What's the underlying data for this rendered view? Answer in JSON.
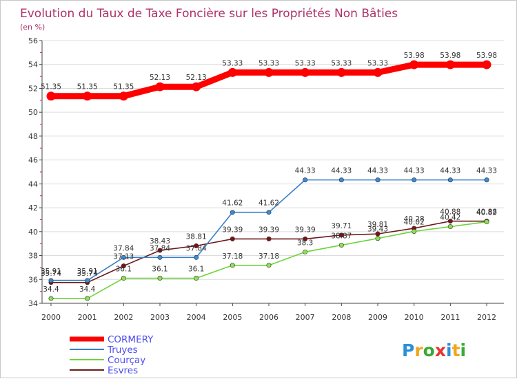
{
  "chart_data": {
    "type": "line",
    "title": "Evolution du Taux de Taxe Foncière sur les Propriétés Non Bâties",
    "subtitle": "(en %)",
    "categories": [
      "2000",
      "2001",
      "2002",
      "2003",
      "2004",
      "2005",
      "2006",
      "2007",
      "2008",
      "2009",
      "2010",
      "2011",
      "2012"
    ],
    "ylim": [
      34,
      56
    ],
    "yticks": [
      34,
      36,
      38,
      40,
      42,
      44,
      46,
      48,
      50,
      52,
      54,
      56
    ],
    "series": [
      {
        "name": "CORMERY",
        "color": "#ff0000",
        "values": [
          51.35,
          51.35,
          51.35,
          52.13,
          52.13,
          53.33,
          53.33,
          53.33,
          53.33,
          53.33,
          53.98,
          53.98,
          53.98
        ]
      },
      {
        "name": "Truyes",
        "color": "#3a7fc4",
        "values": [
          35.91,
          35.91,
          37.84,
          37.84,
          37.84,
          41.62,
          41.62,
          44.33,
          44.33,
          44.33,
          44.33,
          44.33,
          44.33
        ]
      },
      {
        "name": "Courçay",
        "color": "#6dd33a",
        "values": [
          34.4,
          34.4,
          36.1,
          36.1,
          36.1,
          37.18,
          37.18,
          38.3,
          38.87,
          39.43,
          40.02,
          40.42,
          40.82
        ]
      },
      {
        "name": "Esvres",
        "color": "#6b1a1a",
        "values": [
          35.74,
          35.74,
          37.13,
          38.43,
          38.81,
          39.39,
          39.39,
          39.39,
          39.71,
          39.81,
          40.28,
          40.88,
          40.88
        ]
      }
    ]
  },
  "brand": "Proxiti"
}
